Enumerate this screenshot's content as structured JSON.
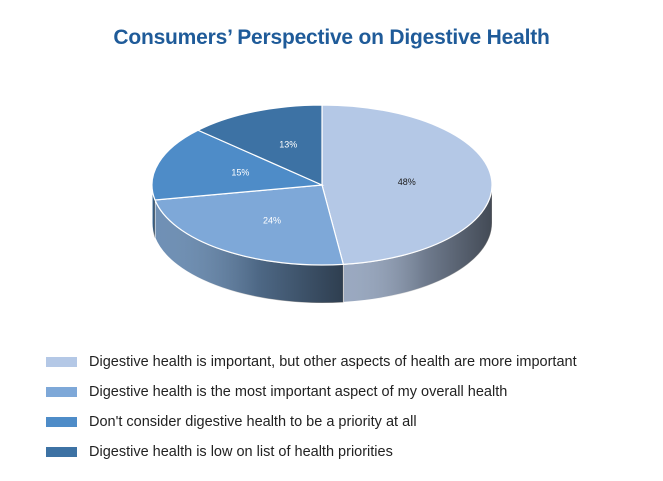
{
  "chart_data": {
    "type": "pie",
    "title": "Consumers’ Perspective on Digestive Health",
    "slices": [
      {
        "label": "Digestive health is important, but other aspects of health are more important",
        "value": 48,
        "display": "48%",
        "color": "#b4c8e6",
        "label_color": "#1a1a1a"
      },
      {
        "label": "Digestive health is the most important aspect of my overall health",
        "value": 24,
        "display": "24%",
        "color": "#7ea8d8",
        "label_color": "#ffffff"
      },
      {
        "label": "Don't consider digestive health to be a priority at all",
        "value": 15,
        "display": "15%",
        "color": "#4e8cc8",
        "label_color": "#ffffff"
      },
      {
        "label": "Digestive health is low on list of health priorities",
        "value": 13,
        "display": "13%",
        "color": "#3d72a4",
        "label_color": "#ffffff"
      }
    ],
    "legend_position": "bottom-left"
  }
}
